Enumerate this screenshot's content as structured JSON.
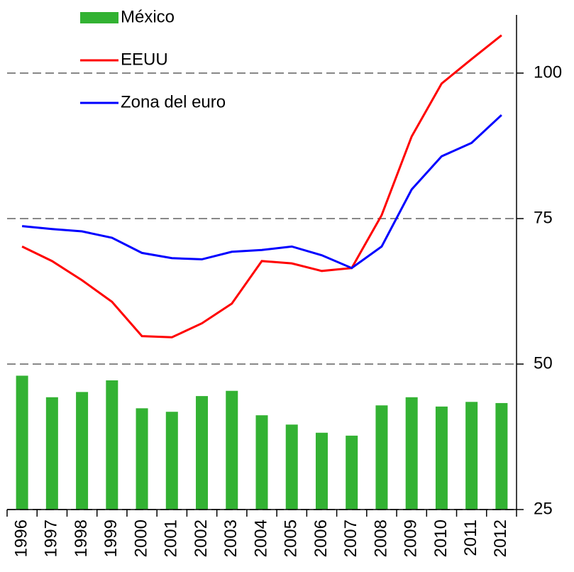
{
  "chart_data": {
    "type": "bar_line",
    "categories": [
      "1996",
      "1997",
      "1998",
      "1999",
      "2000",
      "2001",
      "2002",
      "2003",
      "2004",
      "2005",
      "2006",
      "2007",
      "2008",
      "2009",
      "2010",
      "2011",
      "2012"
    ],
    "series": [
      {
        "name": "México",
        "type": "bar",
        "color": "#33b233",
        "values": [
          48.0,
          44.3,
          45.2,
          47.2,
          42.4,
          41.8,
          44.5,
          45.4,
          41.2,
          39.6,
          38.2,
          37.7,
          42.9,
          44.3,
          42.7,
          43.5,
          43.3
        ]
      },
      {
        "name": "EEUU",
        "type": "line",
        "color": "#ff0000",
        "values": [
          70.2,
          67.7,
          64.4,
          60.7,
          54.8,
          54.6,
          57.0,
          60.4,
          67.7,
          67.3,
          66.0,
          66.5,
          75.6,
          89.1,
          98.2,
          102.4,
          106.5
        ]
      },
      {
        "name": "Zona del euro",
        "type": "line",
        "color": "#0000ff",
        "values": [
          73.7,
          73.2,
          72.8,
          71.7,
          69.1,
          68.2,
          68.0,
          69.3,
          69.6,
          70.2,
          68.7,
          66.5,
          70.2,
          80.0,
          85.7,
          88.0,
          92.8
        ]
      }
    ],
    "ylim": [
      25,
      110
    ],
    "yticks": [
      25,
      50,
      75,
      100
    ],
    "grid": true,
    "legend": "upper left"
  }
}
